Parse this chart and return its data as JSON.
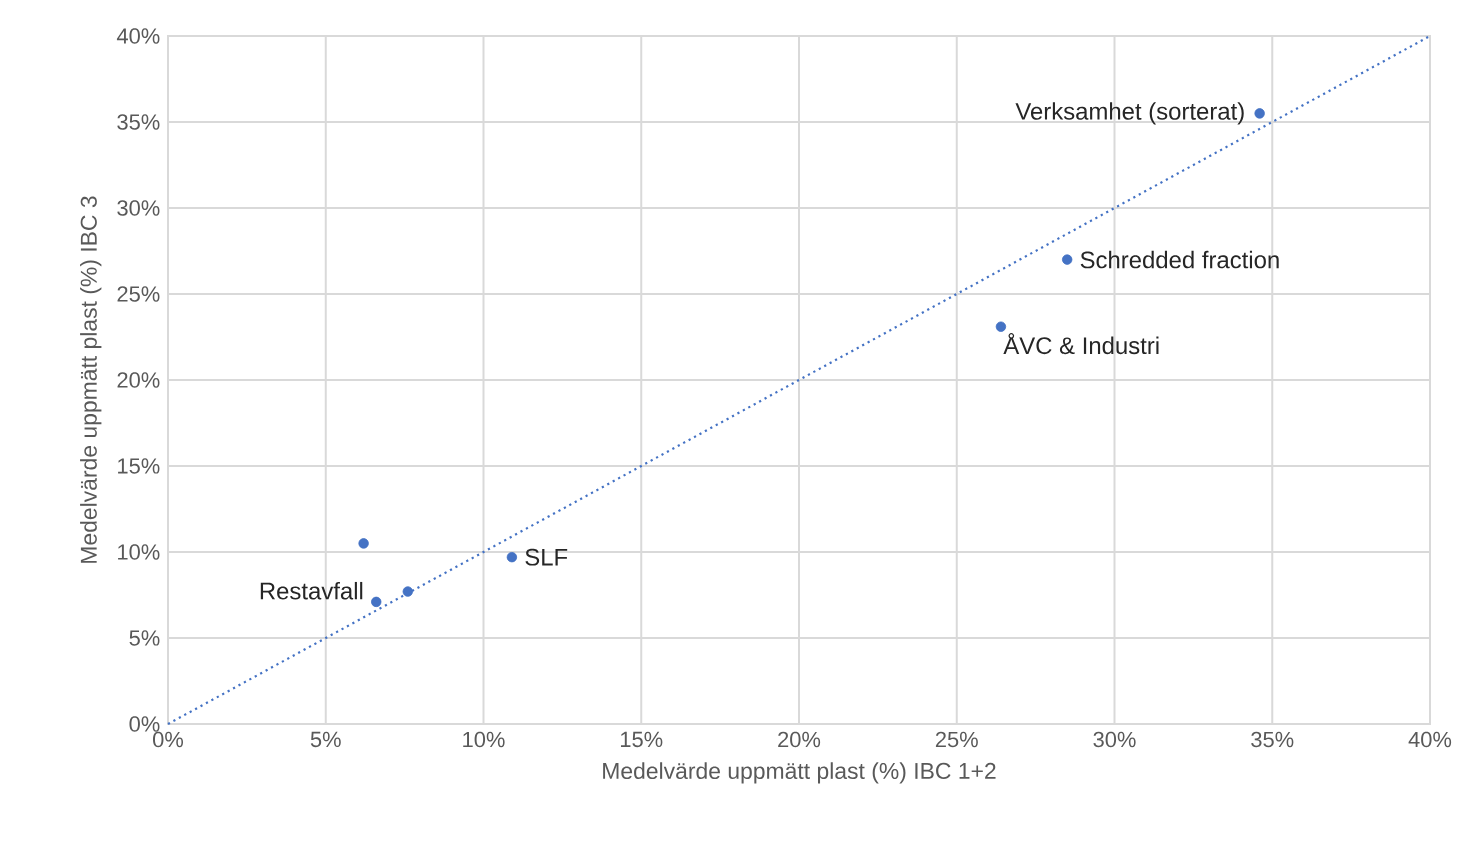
{
  "chart_data": {
    "type": "scatter",
    "xlabel": "Medelvärde uppmätt plast (%) IBC 1+2",
    "ylabel": "Medelvärde uppmätt plast (%) IBC 3",
    "series": [
      {
        "type": "scatter",
        "color": "#4472c4",
        "marker": "circle",
        "x": [
          34.6,
          28.5,
          26.4,
          10.9,
          6.2,
          6.6,
          7.6
        ],
        "values": [
          35.5,
          27.0,
          23.1,
          9.7,
          10.5,
          7.1,
          7.7
        ]
      },
      {
        "type": "line",
        "color": "#4472c4",
        "line_style": "dotted",
        "marker": "none",
        "x": [
          0,
          40
        ],
        "values": [
          0,
          40
        ]
      }
    ],
    "xlim": [
      0,
      40
    ],
    "ylim": [
      0,
      40
    ],
    "xticks": [
      {
        "value": 0,
        "label": "0%"
      },
      {
        "value": 5,
        "label": "5%"
      },
      {
        "value": 10,
        "label": "10%"
      },
      {
        "value": 15,
        "label": "15%"
      },
      {
        "value": 20,
        "label": "20%"
      },
      {
        "value": 25,
        "label": "25%"
      },
      {
        "value": 30,
        "label": "30%"
      },
      {
        "value": 35,
        "label": "35%"
      },
      {
        "value": 40,
        "label": "40%"
      }
    ],
    "yticks": [
      {
        "value": 0,
        "label": "0%"
      },
      {
        "value": 5,
        "label": "5%"
      },
      {
        "value": 10,
        "label": "10%"
      },
      {
        "value": 15,
        "label": "15%"
      },
      {
        "value": 20,
        "label": "20%"
      },
      {
        "value": 25,
        "label": "25%"
      },
      {
        "value": 30,
        "label": "30%"
      },
      {
        "value": 35,
        "label": "35%"
      },
      {
        "value": 40,
        "label": "40%"
      }
    ],
    "grid": true,
    "annotations": [
      {
        "text": "Verksamhet (sorterat)",
        "x": 34.6,
        "y": 35.5
      },
      {
        "text": "Schredded fraction",
        "x": 28.5,
        "y": 27.0
      },
      {
        "text": "ÅVC & Industri",
        "x": 26.4,
        "y": 23.1
      },
      {
        "text": "SLF",
        "x": 10.9,
        "y": 9.7
      },
      {
        "text": "Restavfall",
        "x": 6.6,
        "y": 7.1
      }
    ]
  }
}
